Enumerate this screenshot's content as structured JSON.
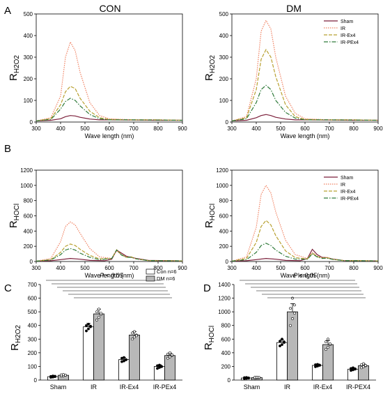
{
  "panels": {
    "A": {
      "letter": "A"
    },
    "B": {
      "letter": "B"
    },
    "C": {
      "letter": "C"
    },
    "D": {
      "letter": "D"
    }
  },
  "columns": {
    "left": "CON",
    "right": "DM"
  },
  "colors": {
    "sham": "#7b1f3a",
    "ir": "#f08060",
    "ir_ex4": "#b8a030",
    "ir_pex4": "#2f7a3a",
    "bar_con": "#ffffff",
    "bar_dm": "#b8b8b8"
  },
  "chart_data": [
    {
      "id": "A-CON",
      "type": "line",
      "panel": "A",
      "title": "CON",
      "xlabel": "Wave length (nm)",
      "ylabel": "RH2O2",
      "xlim": [
        300,
        900
      ],
      "ylim": [
        0,
        500
      ],
      "xticks": [
        300,
        400,
        500,
        600,
        700,
        800,
        900
      ],
      "yticks": [
        0,
        100,
        200,
        300,
        400,
        500
      ],
      "series": [
        {
          "key": "sham",
          "x": [
            300,
            360,
            400,
            420,
            440,
            460,
            480,
            520,
            560,
            600,
            700,
            800,
            900
          ],
          "y": [
            5,
            8,
            15,
            25,
            30,
            28,
            22,
            14,
            10,
            10,
            9,
            8,
            8
          ]
        },
        {
          "key": "ir",
          "x": [
            300,
            360,
            400,
            420,
            440,
            460,
            480,
            520,
            560,
            600,
            700,
            800,
            900
          ],
          "y": [
            5,
            20,
            120,
            300,
            370,
            330,
            230,
            90,
            30,
            15,
            10,
            10,
            8
          ]
        },
        {
          "key": "ir_ex4",
          "x": [
            300,
            360,
            400,
            420,
            440,
            460,
            480,
            520,
            560,
            600,
            700,
            800,
            900
          ],
          "y": [
            5,
            15,
            80,
            140,
            165,
            155,
            110,
            50,
            20,
            12,
            10,
            10,
            8
          ]
        },
        {
          "key": "ir_pex4",
          "x": [
            300,
            360,
            400,
            420,
            440,
            460,
            480,
            520,
            560,
            600,
            700,
            800,
            900
          ],
          "y": [
            5,
            12,
            60,
            95,
            110,
            100,
            75,
            35,
            15,
            10,
            10,
            9,
            8
          ]
        }
      ]
    },
    {
      "id": "A-DM",
      "type": "line",
      "panel": "A",
      "title": "DM",
      "xlabel": "Wave length (nm)",
      "ylabel": "RH2O2",
      "xlim": [
        300,
        900
      ],
      "ylim": [
        0,
        500
      ],
      "xticks": [
        300,
        400,
        500,
        600,
        700,
        800,
        900
      ],
      "yticks": [
        0,
        100,
        200,
        300,
        400,
        500
      ],
      "legend": [
        "Sham",
        "IR",
        "IR-Ex4",
        "IR-PEx4"
      ],
      "series": [
        {
          "key": "sham",
          "name": "Sham",
          "x": [
            300,
            360,
            400,
            420,
            440,
            460,
            480,
            520,
            560,
            600,
            700,
            800,
            900
          ],
          "y": [
            5,
            8,
            20,
            30,
            35,
            30,
            22,
            14,
            10,
            10,
            9,
            8,
            8
          ]
        },
        {
          "key": "ir",
          "name": "IR",
          "x": [
            300,
            360,
            400,
            420,
            440,
            460,
            480,
            520,
            560,
            600,
            700,
            800,
            900
          ],
          "y": [
            5,
            25,
            200,
            420,
            470,
            430,
            300,
            120,
            40,
            15,
            10,
            10,
            8
          ]
        },
        {
          "key": "ir_ex4",
          "name": "IR-Ex4",
          "x": [
            300,
            360,
            400,
            420,
            440,
            460,
            480,
            520,
            560,
            600,
            700,
            800,
            900
          ],
          "y": [
            5,
            20,
            150,
            290,
            335,
            300,
            210,
            80,
            25,
            12,
            10,
            10,
            8
          ]
        },
        {
          "key": "ir_pex4",
          "name": "IR-PEx4",
          "x": [
            300,
            360,
            400,
            420,
            440,
            460,
            480,
            520,
            560,
            600,
            700,
            800,
            900
          ],
          "y": [
            5,
            15,
            90,
            150,
            170,
            150,
            100,
            45,
            18,
            10,
            10,
            9,
            8
          ]
        }
      ]
    },
    {
      "id": "B-CON",
      "type": "line",
      "panel": "B",
      "xlabel": "Wave length (nm)",
      "ylabel": "RHOCl",
      "xlim": [
        300,
        900
      ],
      "ylim": [
        0,
        1200
      ],
      "xticks": [
        300,
        400,
        500,
        600,
        700,
        800,
        900
      ],
      "yticks": [
        0,
        200,
        400,
        600,
        800,
        1000,
        1200
      ],
      "series": [
        {
          "key": "sham",
          "x": [
            300,
            360,
            400,
            440,
            480,
            520,
            580,
            610,
            630,
            650,
            670,
            690,
            710,
            760,
            900
          ],
          "y": [
            5,
            10,
            25,
            40,
            30,
            15,
            10,
            30,
            150,
            110,
            70,
            55,
            40,
            15,
            8
          ]
        },
        {
          "key": "ir",
          "x": [
            300,
            360,
            400,
            420,
            440,
            460,
            480,
            520,
            560,
            610,
            630,
            650,
            670,
            690,
            710,
            760,
            900
          ],
          "y": [
            5,
            40,
            260,
            460,
            520,
            480,
            370,
            170,
            60,
            40,
            140,
            90,
            60,
            60,
            35,
            12,
            8
          ]
        },
        {
          "key": "ir_ex4",
          "x": [
            300,
            360,
            400,
            420,
            440,
            460,
            480,
            520,
            560,
            610,
            630,
            650,
            670,
            690,
            710,
            760,
            900
          ],
          "y": [
            5,
            25,
            120,
            200,
            230,
            210,
            160,
            80,
            35,
            40,
            155,
            90,
            55,
            60,
            35,
            12,
            8
          ]
        },
        {
          "key": "ir_pex4",
          "x": [
            300,
            360,
            400,
            420,
            440,
            460,
            480,
            520,
            560,
            610,
            630,
            650,
            670,
            690,
            710,
            760,
            900
          ],
          "y": [
            5,
            20,
            90,
            150,
            170,
            150,
            110,
            55,
            25,
            40,
            150,
            85,
            55,
            55,
            35,
            12,
            8
          ]
        }
      ]
    },
    {
      "id": "B-DM",
      "type": "line",
      "panel": "B",
      "xlabel": "Wave length (nm)",
      "ylabel": "RHOCl",
      "xlim": [
        300,
        900
      ],
      "ylim": [
        0,
        1200
      ],
      "xticks": [
        300,
        400,
        500,
        600,
        700,
        800,
        900
      ],
      "yticks": [
        0,
        200,
        400,
        600,
        800,
        1000,
        1200
      ],
      "legend": [
        "Sham",
        "IR",
        "IR-Ex4",
        "IR-PEx4"
      ],
      "series": [
        {
          "key": "sham",
          "name": "Sham",
          "x": [
            300,
            360,
            400,
            440,
            480,
            520,
            580,
            610,
            630,
            650,
            670,
            690,
            710,
            760,
            900
          ],
          "y": [
            5,
            10,
            25,
            40,
            30,
            15,
            10,
            40,
            160,
            90,
            55,
            50,
            35,
            12,
            8
          ]
        },
        {
          "key": "ir",
          "name": "IR",
          "x": [
            300,
            360,
            400,
            420,
            440,
            460,
            480,
            520,
            560,
            610,
            630,
            650,
            670,
            690,
            710,
            760,
            900
          ],
          "y": [
            5,
            60,
            450,
            880,
            1000,
            900,
            650,
            280,
            90,
            40,
            120,
            70,
            50,
            55,
            35,
            12,
            8
          ]
        },
        {
          "key": "ir_ex4",
          "name": "IR-Ex4",
          "x": [
            300,
            360,
            400,
            420,
            440,
            460,
            480,
            520,
            560,
            610,
            630,
            650,
            670,
            690,
            710,
            760,
            900
          ],
          "y": [
            5,
            40,
            250,
            460,
            540,
            480,
            340,
            140,
            50,
            35,
            110,
            65,
            45,
            50,
            30,
            12,
            8
          ]
        },
        {
          "key": "ir_pex4",
          "name": "IR-PEx4",
          "x": [
            300,
            360,
            400,
            420,
            440,
            460,
            480,
            520,
            560,
            610,
            630,
            650,
            670,
            690,
            710,
            760,
            900
          ],
          "y": [
            5,
            25,
            120,
            210,
            240,
            210,
            150,
            70,
            30,
            30,
            100,
            60,
            40,
            45,
            30,
            12,
            8
          ]
        }
      ]
    },
    {
      "id": "C",
      "type": "bar",
      "panel": "C",
      "ylabel": "RH2O2",
      "ylim": [
        0,
        700
      ],
      "yticks": [
        0,
        100,
        200,
        300,
        400,
        500,
        600,
        700
      ],
      "categories": [
        "Sham",
        "IR",
        "IR-Ex4",
        "IR-PEx4"
      ],
      "legend": [
        "Con n=6",
        "DM n=6"
      ],
      "annotation": "P < 0.05",
      "series": [
        {
          "name": "Con n=6",
          "key": "bar_con",
          "values": [
            25,
            390,
            150,
            100
          ],
          "errors": [
            5,
            25,
            15,
            12
          ],
          "points": [
            [
              20,
              22,
              25,
              27,
              30,
              28
            ],
            [
              360,
              375,
              390,
              400,
              410,
              395
            ],
            [
              135,
              140,
              150,
              160,
              165,
              148
            ],
            [
              85,
              92,
              100,
              105,
              110,
              98
            ]
          ]
        },
        {
          "name": "DM n=6",
          "key": "bar_dm",
          "values": [
            35,
            485,
            330,
            180
          ],
          "errors": [
            6,
            35,
            25,
            18
          ],
          "points": [
            [
              28,
              32,
              35,
              38,
              40,
              36
            ],
            [
              440,
              460,
              480,
              500,
              520,
              490
            ],
            [
              300,
              315,
              330,
              345,
              355,
              325
            ],
            [
              160,
              170,
              180,
              190,
              200,
              185
            ]
          ]
        }
      ]
    },
    {
      "id": "D",
      "type": "bar",
      "panel": "D",
      "ylabel": "RHOCl",
      "ylim": [
        0,
        1400
      ],
      "yticks": [
        0,
        200,
        400,
        600,
        800,
        1000,
        1200,
        1400
      ],
      "categories": [
        "Sham",
        "IR",
        "IR-Ex4",
        "IR-PEX4"
      ],
      "annotation": "P < 0.05",
      "series": [
        {
          "name": "Con n=6",
          "key": "bar_con",
          "values": [
            30,
            550,
            215,
            160
          ],
          "errors": [
            8,
            40,
            20,
            20
          ],
          "points": [
            [
              20,
              25,
              30,
              35,
              38,
              30
            ],
            [
              500,
              520,
              550,
              570,
              600,
              560
            ],
            [
              195,
              205,
              215,
              225,
              230,
              220
            ],
            [
              140,
              150,
              160,
              170,
              180,
              165
            ]
          ]
        },
        {
          "name": "DM n=6",
          "key": "bar_dm",
          "values": [
            35,
            1000,
            520,
            210
          ],
          "errors": [
            8,
            120,
            60,
            25
          ],
          "points": [
            [
              25,
              30,
              35,
              40,
              42,
              38
            ],
            [
              800,
              900,
              980,
              1050,
              1200,
              1100
            ],
            [
              450,
              480,
              520,
              560,
              600,
              530
            ],
            [
              180,
              195,
              210,
              225,
              240,
              215
            ]
          ]
        }
      ]
    }
  ]
}
